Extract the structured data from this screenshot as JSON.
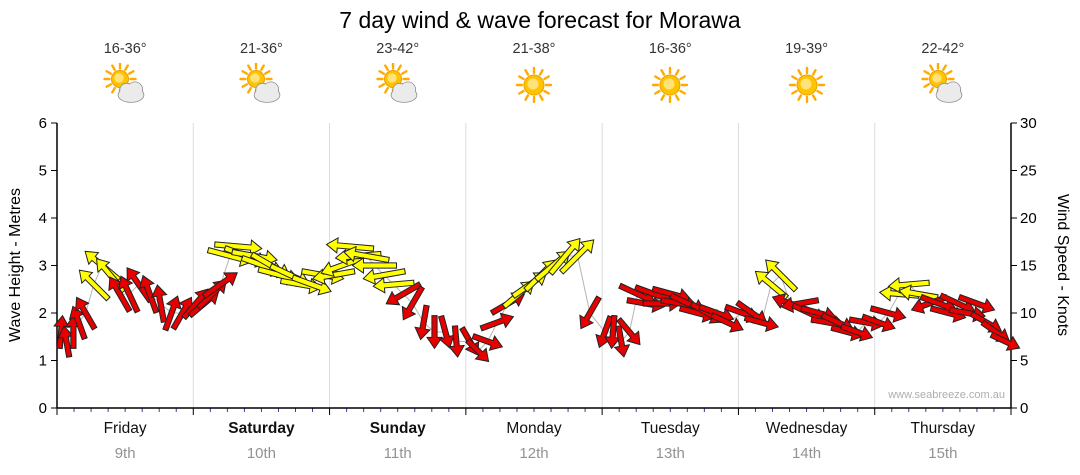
{
  "title": "7 day wind & wave forecast for Morawa",
  "watermark": "www.seabreeze.com.au",
  "axes": {
    "left_label": "Wave Height - Metres",
    "right_label": "Wind Speed - Knots",
    "left_ticks": [
      0,
      1,
      2,
      3,
      4,
      5,
      6
    ],
    "right_ticks": [
      0,
      5,
      10,
      15,
      20,
      25,
      30
    ]
  },
  "days": [
    {
      "name": "Friday",
      "date": "9th",
      "temp": "16-36°",
      "icon": "sun-cloud",
      "bold": false
    },
    {
      "name": "Saturday",
      "date": "10th",
      "temp": "21-36°",
      "icon": "sun-cloud",
      "bold": true
    },
    {
      "name": "Sunday",
      "date": "11th",
      "temp": "23-42°",
      "icon": "sun-cloud",
      "bold": true
    },
    {
      "name": "Monday",
      "date": "12th",
      "temp": "21-38°",
      "icon": "sun",
      "bold": false
    },
    {
      "name": "Tuesday",
      "date": "13th",
      "temp": "16-36°",
      "icon": "sun",
      "bold": false
    },
    {
      "name": "Wednesday",
      "date": "14th",
      "temp": "19-39°",
      "icon": "sun",
      "bold": false
    },
    {
      "name": "Thursday",
      "date": "15th",
      "temp": "22-42°",
      "icon": "sun-cloud",
      "bold": false
    }
  ],
  "colors": {
    "arrow_red": "#e60000",
    "arrow_yellow": "#ffff00",
    "arrow_outline": "#222222",
    "connector": "#b5b5b5",
    "minor_tick": "#3a3ab8",
    "axis": "#000000",
    "gridline": "#dcdcdc"
  },
  "chart_data": {
    "type": "scatter",
    "subtype": "wind-arrow-forecast",
    "title": "7 day wind & wave forecast for Morawa",
    "categories": [
      "Friday 9th",
      "Saturday 10th",
      "Sunday 11th",
      "Monday 12th",
      "Tuesday 13th",
      "Wednesday 14th",
      "Thursday 15th"
    ],
    "ylabel_left": "Wave Height - Metres",
    "ylabel_right": "Wind Speed - Knots",
    "ylim_left": [
      0,
      6
    ],
    "ylim_right": [
      0,
      30
    ],
    "grid": "day-boundaries-only",
    "legend_position": "none",
    "point_format": [
      "day_index",
      "time_fraction_of_day",
      "wind_knots",
      "arrow_dir_deg_0east_clockwise",
      "color r=red y=yellow"
    ],
    "points": [
      [
        0,
        0.03,
        8,
        -85,
        "r"
      ],
      [
        0,
        0.07,
        7,
        -100,
        "r"
      ],
      [
        0,
        0.12,
        8,
        -90,
        "r"
      ],
      [
        0,
        0.16,
        9,
        -110,
        "r"
      ],
      [
        0,
        0.21,
        10,
        -120,
        "r"
      ],
      [
        0,
        0.27,
        13,
        -135,
        "y"
      ],
      [
        0,
        0.33,
        15,
        -140,
        "y"
      ],
      [
        0,
        0.39,
        14,
        -130,
        "y"
      ],
      [
        0,
        0.46,
        12,
        -120,
        "r"
      ],
      [
        0,
        0.53,
        12,
        -115,
        "r"
      ],
      [
        0,
        0.6,
        13,
        -125,
        "r"
      ],
      [
        0,
        0.68,
        12,
        -110,
        "r"
      ],
      [
        0,
        0.76,
        11,
        -100,
        "r"
      ],
      [
        0,
        0.84,
        10,
        -70,
        "r"
      ],
      [
        0,
        0.92,
        10,
        -60,
        "r"
      ],
      [
        1,
        0.02,
        11,
        -50,
        "r"
      ],
      [
        1,
        0.08,
        11,
        -40,
        "r"
      ],
      [
        1,
        0.14,
        12,
        -45,
        "r"
      ],
      [
        1,
        0.2,
        13,
        -35,
        "r"
      ],
      [
        1,
        0.27,
        16,
        15,
        "y"
      ],
      [
        1,
        0.33,
        17,
        5,
        "y"
      ],
      [
        1,
        0.39,
        16,
        20,
        "y"
      ],
      [
        1,
        0.45,
        16,
        10,
        "y"
      ],
      [
        1,
        0.51,
        15,
        20,
        "y"
      ],
      [
        1,
        0.57,
        15,
        30,
        "y"
      ],
      [
        1,
        0.63,
        14,
        15,
        "y"
      ],
      [
        1,
        0.71,
        14,
        25,
        "y"
      ],
      [
        1,
        0.79,
        13,
        10,
        "y"
      ],
      [
        1,
        0.87,
        13,
        20,
        "y"
      ],
      [
        1,
        0.95,
        14,
        10,
        "y"
      ],
      [
        2,
        0.03,
        14,
        170,
        "y"
      ],
      [
        2,
        0.09,
        15,
        160,
        "y"
      ],
      [
        2,
        0.15,
        17,
        185,
        "y"
      ],
      [
        2,
        0.21,
        16,
        175,
        "y"
      ],
      [
        2,
        0.27,
        16,
        190,
        "y"
      ],
      [
        2,
        0.33,
        15,
        180,
        "y"
      ],
      [
        2,
        0.4,
        14,
        170,
        "y"
      ],
      [
        2,
        0.47,
        13,
        175,
        "y"
      ],
      [
        2,
        0.54,
        12,
        150,
        "r"
      ],
      [
        2,
        0.61,
        11,
        120,
        "r"
      ],
      [
        2,
        0.69,
        9,
        100,
        "r"
      ],
      [
        2,
        0.77,
        8,
        90,
        "r"
      ],
      [
        2,
        0.85,
        8,
        75,
        "r"
      ],
      [
        2,
        0.93,
        7,
        85,
        "r"
      ],
      [
        3,
        0.03,
        7,
        60,
        "r"
      ],
      [
        3,
        0.09,
        6,
        45,
        "r"
      ],
      [
        3,
        0.16,
        7,
        20,
        "r"
      ],
      [
        3,
        0.23,
        9,
        -20,
        "r"
      ],
      [
        3,
        0.31,
        11,
        -30,
        "r"
      ],
      [
        3,
        0.39,
        12,
        -40,
        "y"
      ],
      [
        3,
        0.47,
        13,
        -35,
        "y"
      ],
      [
        3,
        0.55,
        14,
        -45,
        "y"
      ],
      [
        3,
        0.64,
        15,
        -40,
        "y"
      ],
      [
        3,
        0.73,
        16,
        -50,
        "y"
      ],
      [
        3,
        0.82,
        16,
        -45,
        "y"
      ],
      [
        3,
        0.91,
        10,
        120,
        "r"
      ],
      [
        4,
        0.02,
        8,
        110,
        "r"
      ],
      [
        4,
        0.08,
        8,
        95,
        "r"
      ],
      [
        4,
        0.14,
        7,
        80,
        "r"
      ],
      [
        4,
        0.2,
        8,
        50,
        "r"
      ],
      [
        4,
        0.26,
        12,
        25,
        "r"
      ],
      [
        4,
        0.32,
        11,
        10,
        "r"
      ],
      [
        4,
        0.38,
        12,
        20,
        "r"
      ],
      [
        4,
        0.44,
        11,
        0,
        "r"
      ],
      [
        4,
        0.51,
        12,
        15,
        "r"
      ],
      [
        4,
        0.57,
        11,
        10,
        "r"
      ],
      [
        4,
        0.63,
        11,
        25,
        "r"
      ],
      [
        4,
        0.7,
        10,
        15,
        "r"
      ],
      [
        4,
        0.77,
        10,
        30,
        "r"
      ],
      [
        4,
        0.84,
        10,
        20,
        "r"
      ],
      [
        4,
        0.92,
        9,
        25,
        "r"
      ],
      [
        5,
        0.03,
        10,
        20,
        "r"
      ],
      [
        5,
        0.1,
        10,
        35,
        "r"
      ],
      [
        5,
        0.17,
        9,
        15,
        "r"
      ],
      [
        5,
        0.24,
        13,
        -140,
        "y"
      ],
      [
        5,
        0.31,
        14,
        -135,
        "y"
      ],
      [
        5,
        0.38,
        11,
        -160,
        "r"
      ],
      [
        5,
        0.45,
        11,
        170,
        "r"
      ],
      [
        5,
        0.52,
        10,
        25,
        "r"
      ],
      [
        5,
        0.59,
        10,
        15,
        "r"
      ],
      [
        5,
        0.66,
        9,
        10,
        "r"
      ],
      [
        5,
        0.73,
        9,
        25,
        "r"
      ],
      [
        5,
        0.8,
        8,
        15,
        "r"
      ],
      [
        5,
        0.87,
        8,
        20,
        "r"
      ],
      [
        5,
        0.94,
        9,
        10,
        "r"
      ],
      [
        6,
        0.03,
        9,
        20,
        "r"
      ],
      [
        6,
        0.1,
        10,
        15,
        "r"
      ],
      [
        6,
        0.18,
        12,
        185,
        "y"
      ],
      [
        6,
        0.25,
        13,
        175,
        "y"
      ],
      [
        6,
        0.32,
        12,
        190,
        "y"
      ],
      [
        6,
        0.4,
        11,
        160,
        "r"
      ],
      [
        6,
        0.47,
        11,
        20,
        "r"
      ],
      [
        6,
        0.54,
        10,
        15,
        "r"
      ],
      [
        6,
        0.61,
        11,
        25,
        "r"
      ],
      [
        6,
        0.68,
        10,
        10,
        "r"
      ],
      [
        6,
        0.75,
        11,
        20,
        "r"
      ],
      [
        6,
        0.82,
        9,
        30,
        "r"
      ],
      [
        6,
        0.89,
        8,
        35,
        "r"
      ],
      [
        6,
        0.96,
        7,
        25,
        "r"
      ]
    ]
  }
}
